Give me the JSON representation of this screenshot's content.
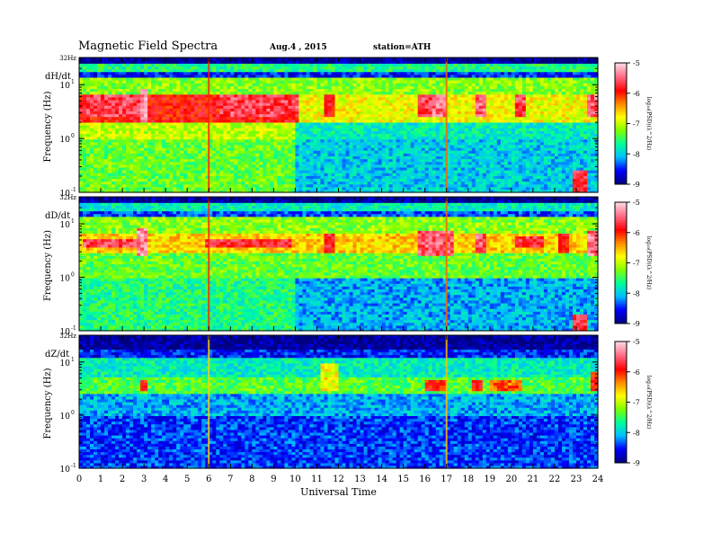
{
  "header": {
    "title": "Magnetic  Field  Spectra",
    "date": "Aug.4  , 2015",
    "station": "station=ATH"
  },
  "colormap": {
    "stops": [
      "#000080",
      "#0000ff",
      "#00bfff",
      "#00ff99",
      "#7fff00",
      "#ffff00",
      "#ff8c00",
      "#ff0000",
      "#ff6680",
      "#ffd1dc"
    ]
  },
  "chart_data": [
    {
      "type": "heatmap",
      "panel_label": "dH/dt",
      "ylabel": "Frequency  (Hz)",
      "y_top_label": "32Hz",
      "y_ticks": [
        {
          "base": "10",
          "exp": "1",
          "value": 10
        },
        {
          "base": "10",
          "exp": "0",
          "value": 1
        },
        {
          "base": "10",
          "exp": "-1",
          "value": 0.1
        }
      ],
      "yscale": "log",
      "ylim": [
        0.1,
        32
      ],
      "xlim": [
        0,
        24
      ],
      "colorbar": {
        "label": "log₁₀(PSD)(λ^2/Hz)",
        "ticks": [
          "-5",
          "-6",
          "-7",
          "-8",
          "-9"
        ],
        "range": [
          -9,
          -5
        ]
      },
      "bands": [
        {
          "f1": 25,
          "f2": 32,
          "t0": 0,
          "t1": 24,
          "level": 0.02
        },
        {
          "f1": 18,
          "f2": 25,
          "t0": 0,
          "t1": 24,
          "level": 0.35
        },
        {
          "f1": 13,
          "f2": 18,
          "t0": 0,
          "t1": 24,
          "level": 0.12
        },
        {
          "f1": 7,
          "f2": 13,
          "t0": 0,
          "t1": 24,
          "level": 0.45
        },
        {
          "f1": 2,
          "f2": 7,
          "t0": 0,
          "t1": 10.2,
          "level": 0.78
        },
        {
          "f1": 2,
          "f2": 7,
          "t0": 10.2,
          "t1": 24,
          "level": 0.55
        },
        {
          "f1": 1,
          "f2": 2,
          "t0": 0,
          "t1": 10,
          "level": 0.5
        },
        {
          "f1": 0.1,
          "f2": 1,
          "t0": 0,
          "t1": 10,
          "level": 0.42
        },
        {
          "f1": 0.1,
          "f2": 1,
          "t0": 10,
          "t1": 24,
          "level": 0.25
        }
      ],
      "bursts": [
        {
          "t0": 0.3,
          "t1": 2.8,
          "f1": 2.5,
          "f2": 7,
          "level": 0.85
        },
        {
          "t0": 2.8,
          "t1": 3.2,
          "f1": 2,
          "f2": 9,
          "level": 0.92
        },
        {
          "t0": 6.5,
          "t1": 10.2,
          "f1": 2.5,
          "f2": 7,
          "level": 0.85
        },
        {
          "t0": 11.3,
          "t1": 11.8,
          "f1": 2.5,
          "f2": 7,
          "level": 0.8
        },
        {
          "t0": 15.6,
          "t1": 16.3,
          "f1": 2.5,
          "f2": 7,
          "level": 0.85
        },
        {
          "t0": 16.3,
          "t1": 17.0,
          "f1": 2.5,
          "f2": 7,
          "level": 0.9
        },
        {
          "t0": 18.3,
          "t1": 18.8,
          "f1": 2.5,
          "f2": 7,
          "level": 0.88
        },
        {
          "t0": 20.2,
          "t1": 20.6,
          "f1": 2.5,
          "f2": 7,
          "level": 0.85
        },
        {
          "t0": 23.5,
          "t1": 24,
          "f1": 2.5,
          "f2": 7,
          "level": 0.88
        },
        {
          "t0": 22.8,
          "t1": 23.5,
          "f1": 0.1,
          "f2": 0.25,
          "level": 0.82
        }
      ],
      "lines": [
        {
          "t": 6.0,
          "level": 0.75
        },
        {
          "t": 17.0,
          "level": 0.7
        }
      ]
    },
    {
      "type": "heatmap",
      "panel_label": "dD/dt",
      "ylabel": "Frequency  (Hz)",
      "y_top_label": "32Hz",
      "y_ticks": [
        {
          "base": "10",
          "exp": "1",
          "value": 10
        },
        {
          "base": "10",
          "exp": "0",
          "value": 1
        },
        {
          "base": "10",
          "exp": "-1",
          "value": 0.1
        }
      ],
      "yscale": "log",
      "ylim": [
        0.1,
        32
      ],
      "xlim": [
        0,
        24
      ],
      "colorbar": {
        "label": "log₁₀(PSD)(λ^2/Hz)",
        "ticks": [
          "-5",
          "-6",
          "-7",
          "-8",
          "-9"
        ],
        "range": [
          -9,
          -5
        ]
      },
      "bands": [
        {
          "f1": 25,
          "f2": 32,
          "t0": 0,
          "t1": 24,
          "level": 0.02
        },
        {
          "f1": 18,
          "f2": 25,
          "t0": 0,
          "t1": 24,
          "level": 0.3
        },
        {
          "f1": 13,
          "f2": 18,
          "t0": 0,
          "t1": 24,
          "level": 0.15
        },
        {
          "f1": 7,
          "f2": 13,
          "t0": 0,
          "t1": 24,
          "level": 0.45
        },
        {
          "f1": 3,
          "f2": 7,
          "t0": 0,
          "t1": 24,
          "level": 0.6
        },
        {
          "f1": 1,
          "f2": 3,
          "t0": 0,
          "t1": 24,
          "level": 0.42
        },
        {
          "f1": 0.1,
          "f2": 1,
          "t0": 0,
          "t1": 10,
          "level": 0.35
        },
        {
          "f1": 0.1,
          "f2": 1,
          "t0": 10,
          "t1": 24,
          "level": 0.22
        }
      ],
      "bursts": [
        {
          "t0": 0.2,
          "t1": 2.6,
          "f1": 3.5,
          "f2": 5.5,
          "level": 0.85
        },
        {
          "t0": 2.7,
          "t1": 3.2,
          "f1": 2.5,
          "f2": 9,
          "level": 0.92
        },
        {
          "t0": 5.8,
          "t1": 9.8,
          "f1": 3.8,
          "f2": 5.2,
          "level": 0.82
        },
        {
          "t0": 11.3,
          "t1": 11.8,
          "f1": 3,
          "f2": 7,
          "level": 0.8
        },
        {
          "t0": 15.6,
          "t1": 17.4,
          "f1": 2.5,
          "f2": 7.5,
          "level": 0.88
        },
        {
          "t0": 18.3,
          "t1": 18.9,
          "f1": 3,
          "f2": 7,
          "level": 0.88
        },
        {
          "t0": 20.1,
          "t1": 21.5,
          "f1": 3.5,
          "f2": 6,
          "level": 0.82
        },
        {
          "t0": 22.2,
          "t1": 22.6,
          "f1": 3,
          "f2": 7,
          "level": 0.8
        },
        {
          "t0": 23.5,
          "t1": 24,
          "f1": 2.5,
          "f2": 8,
          "level": 0.9
        },
        {
          "t0": 22.8,
          "t1": 23.5,
          "f1": 0.1,
          "f2": 0.2,
          "level": 0.82
        }
      ],
      "lines": [
        {
          "t": 6.0,
          "level": 0.75
        },
        {
          "t": 17.0,
          "level": 0.7
        }
      ]
    },
    {
      "type": "heatmap",
      "panel_label": "dZ/dt",
      "ylabel": "Frequency  (Hz)",
      "y_top_label": "32Hz",
      "y_ticks": [
        {
          "base": "10",
          "exp": "1",
          "value": 10
        },
        {
          "base": "10",
          "exp": "0",
          "value": 1
        },
        {
          "base": "10",
          "exp": "-1",
          "value": 0.1
        }
      ],
      "yscale": "log",
      "ylim": [
        0.1,
        32
      ],
      "xlim": [
        0,
        24
      ],
      "xlabel": "Universal  Time",
      "x_ticks": [
        "0",
        "1",
        "2",
        "3",
        "4",
        "5",
        "6",
        "7",
        "8",
        "9",
        "10",
        "11",
        "12",
        "13",
        "14",
        "15",
        "16",
        "17",
        "18",
        "19",
        "20",
        "21",
        "22",
        "23",
        "24"
      ],
      "colorbar": {
        "label": "log₁₀(PSD)(λ^2/Hz)",
        "ticks": [
          "-5",
          "-6",
          "-7",
          "-8",
          "-9"
        ],
        "range": [
          -9,
          -5
        ]
      },
      "bands": [
        {
          "f1": 18,
          "f2": 32,
          "t0": 0,
          "t1": 24,
          "level": 0.02
        },
        {
          "f1": 12,
          "f2": 18,
          "t0": 0,
          "t1": 24,
          "level": 0.12
        },
        {
          "f1": 5,
          "f2": 12,
          "t0": 0,
          "t1": 24,
          "level": 0.3
        },
        {
          "f1": 2.5,
          "f2": 5,
          "t0": 0,
          "t1": 24,
          "level": 0.4
        },
        {
          "f1": 1,
          "f2": 2.5,
          "t0": 0,
          "t1": 24,
          "level": 0.22
        },
        {
          "f1": 0.1,
          "f2": 1,
          "t0": 0,
          "t1": 24,
          "level": 0.14
        }
      ],
      "bursts": [
        {
          "t0": 2.8,
          "t1": 3.2,
          "f1": 2.8,
          "f2": 4.5,
          "level": 0.78
        },
        {
          "t0": 11.2,
          "t1": 12.0,
          "f1": 2.8,
          "f2": 10,
          "level": 0.55
        },
        {
          "t0": 16.0,
          "t1": 17.0,
          "f1": 3,
          "f2": 4.5,
          "level": 0.78
        },
        {
          "t0": 18.2,
          "t1": 18.7,
          "f1": 3,
          "f2": 4.5,
          "level": 0.76
        },
        {
          "t0": 19.0,
          "t1": 20.5,
          "f1": 3,
          "f2": 4.5,
          "level": 0.7
        },
        {
          "t0": 23.6,
          "t1": 24,
          "f1": 2.8,
          "f2": 7,
          "level": 0.78
        }
      ],
      "lines": [
        {
          "t": 6.0,
          "level": 0.6
        },
        {
          "t": 17.0,
          "level": 0.62
        }
      ]
    }
  ]
}
